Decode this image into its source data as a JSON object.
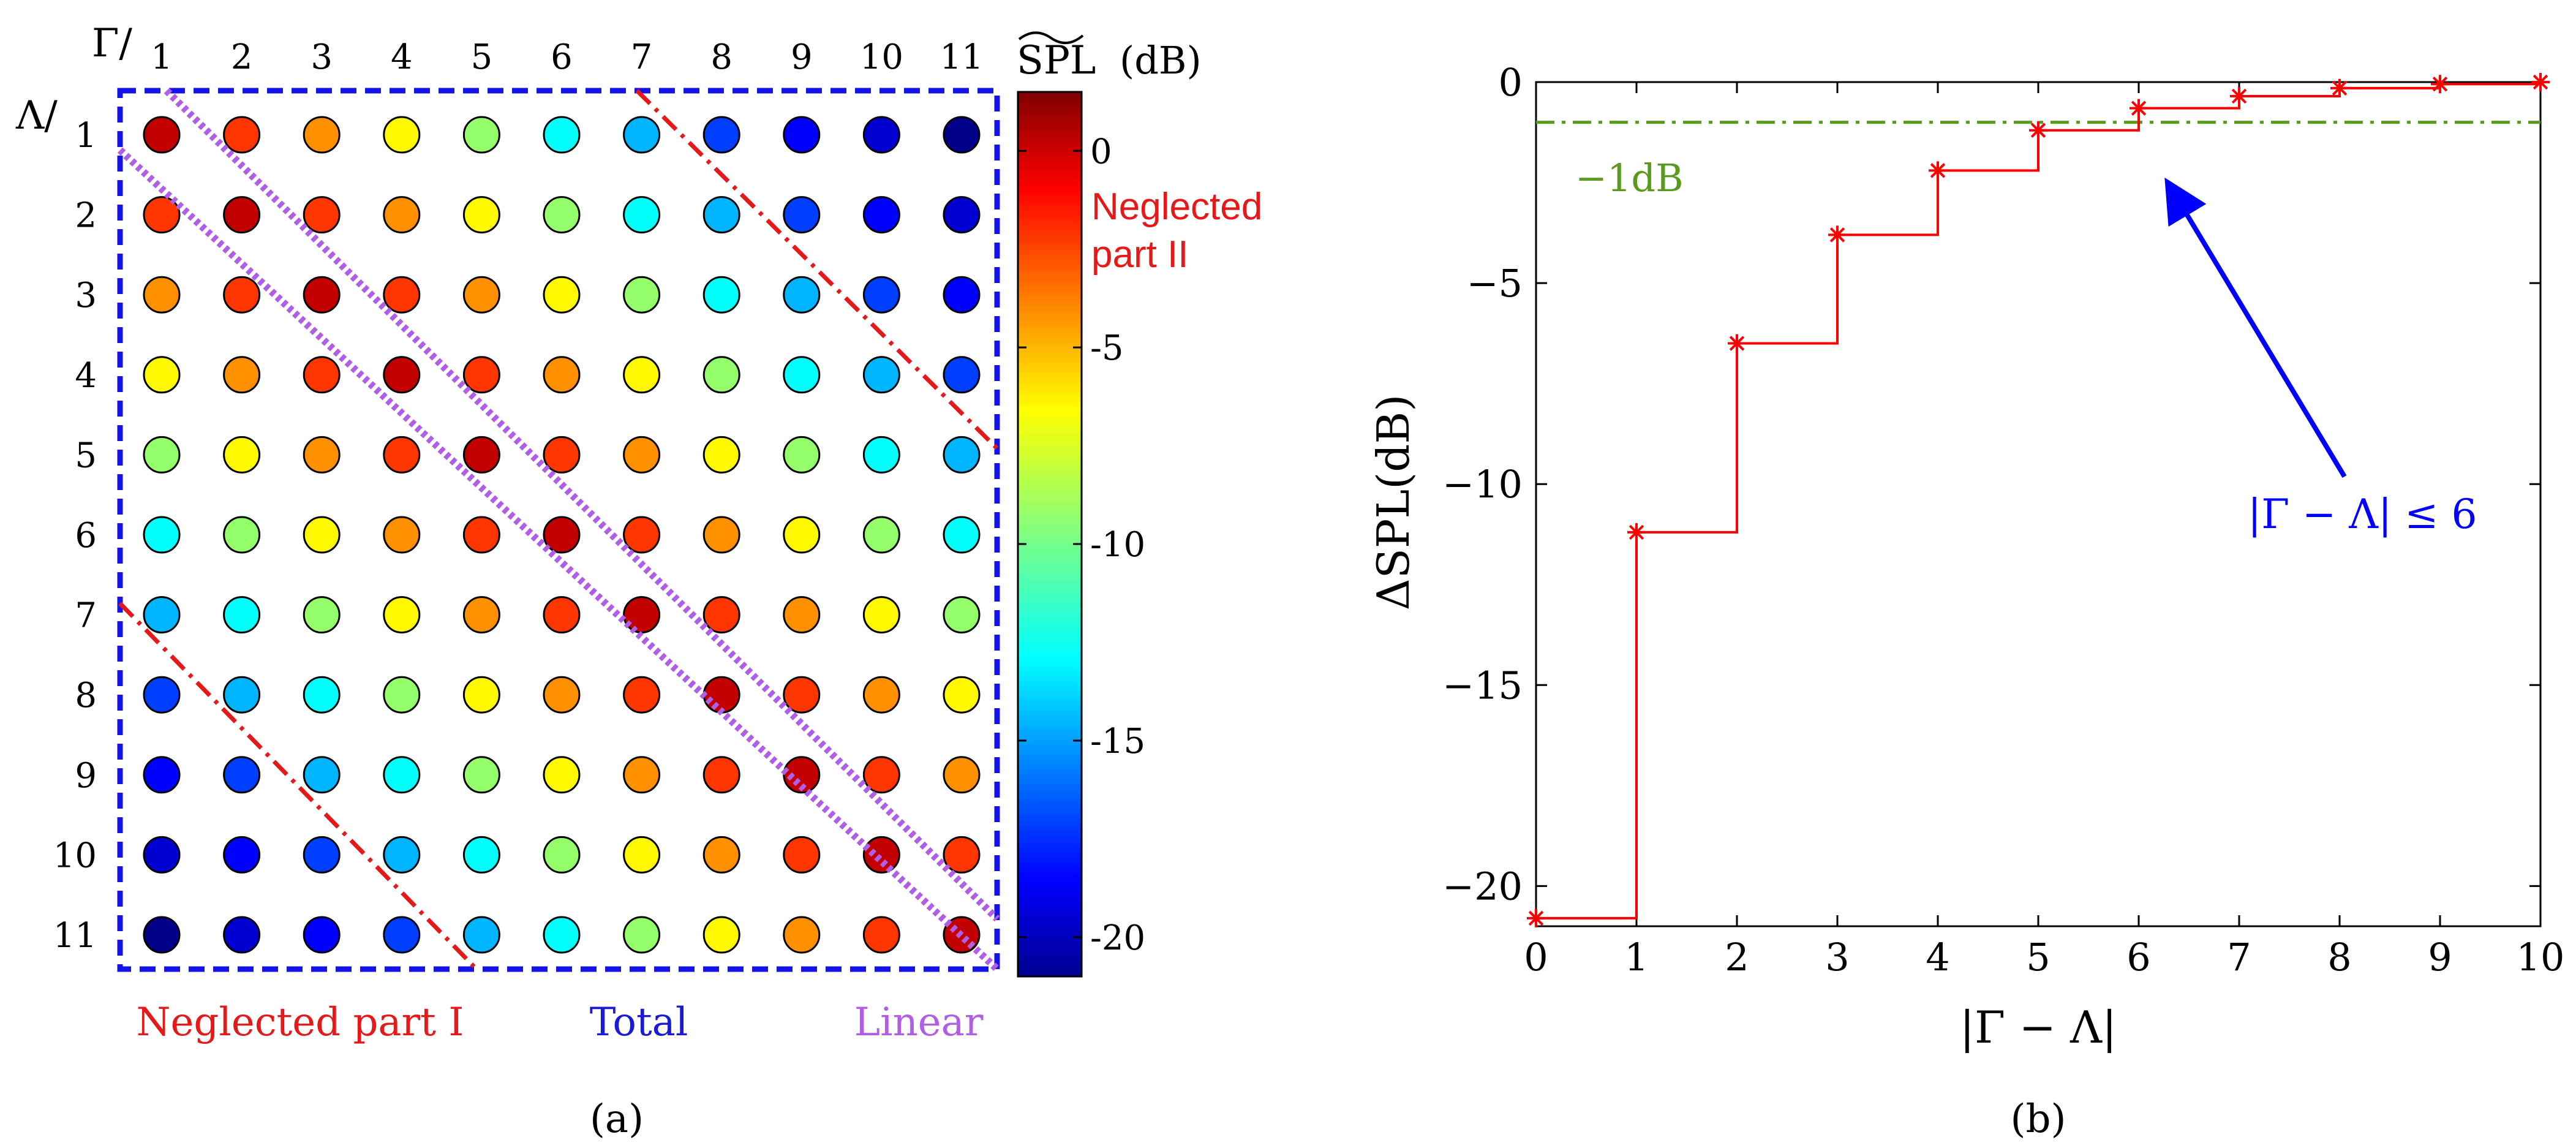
{
  "panel_a": {
    "caption": "(a)",
    "gamma_label": "Γ/",
    "lambda_label": "Λ/",
    "colorbar_title": "SPL",
    "colorbar_unit": "(dB)",
    "label_neglected_I": "Neglected part I",
    "label_total": "Total",
    "label_linear": "Linear",
    "label_neglected_II_line1": "Neglected",
    "label_neglected_II_line2": "part II",
    "colors": {
      "total_box": "#1414e6",
      "neglected": "#e51919",
      "linear": "#b05ee6",
      "label_total": "#1a1ad6",
      "label_neglected": "#e51919",
      "label_linear": "#b05ee6"
    }
  },
  "panel_b": {
    "caption": "(b)",
    "annotation_1db": "−1dB",
    "annotation_arrow": "|Γ − Λ| ≤ 6",
    "colors": {
      "step": "#ff0000",
      "threshold": "#5a9a1e",
      "arrow": "#0000ff"
    }
  },
  "chart_data": [
    {
      "type": "heatmap",
      "title": "",
      "xlabel": "Γ/",
      "ylabel": "Λ/",
      "x_ticks": [
        "1",
        "2",
        "3",
        "4",
        "5",
        "6",
        "7",
        "8",
        "9",
        "10",
        "11"
      ],
      "y_ticks": [
        "1",
        "2",
        "3",
        "4",
        "5",
        "6",
        "7",
        "8",
        "9",
        "10",
        "11"
      ],
      "colorbar": {
        "label": "SPL (dB)",
        "range": [
          -21,
          1.5
        ],
        "ticks": [
          0,
          -5,
          -10,
          -15,
          -20
        ],
        "tick_labels": [
          "0",
          "-5",
          "-10",
          "-15",
          "-20"
        ],
        "colormap": "jet"
      },
      "diagonal_offset_values_db": [
        0,
        -2.5,
        -4.5,
        -6.8,
        -9.3,
        -12.5,
        -14.2,
        -16.8,
        -18.2,
        -19.2,
        -20.8
      ],
      "values_rule": "value(Λ,Γ) = diagonal_offset_values_db[|Γ − Λ|]",
      "regions": [
        "Neglected part I",
        "Total",
        "Linear",
        "Neglected part II"
      ]
    },
    {
      "type": "line",
      "step": true,
      "title": "",
      "xlabel": "|Γ − Λ|",
      "ylabel": "ΔSPL(dB)",
      "xlim": [
        0,
        10
      ],
      "ylim": [
        -21,
        0
      ],
      "x_ticks": [
        0,
        1,
        2,
        3,
        4,
        5,
        6,
        7,
        8,
        9,
        10
      ],
      "y_ticks": [
        0,
        -5,
        -10,
        -15,
        -20
      ],
      "y_tick_labels": [
        "0",
        "−5",
        "−10",
        "−15",
        "−20"
      ],
      "grid": false,
      "series": [
        {
          "name": "ΔSPL",
          "marker": "*",
          "x": [
            0,
            1,
            2,
            3,
            4,
            5,
            6,
            7,
            8,
            9,
            10
          ],
          "values": [
            -20.8,
            -11.2,
            -6.5,
            -3.8,
            -2.2,
            -1.2,
            -0.65,
            -0.35,
            -0.15,
            -0.05,
            0
          ]
        }
      ],
      "threshold_line": {
        "y": -1,
        "label": "−1dB",
        "style": "dash-dot"
      }
    }
  ]
}
